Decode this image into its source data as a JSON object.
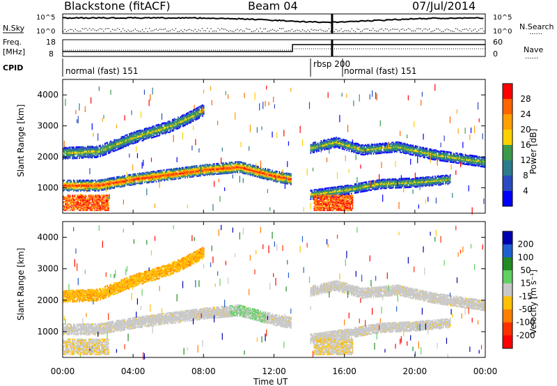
{
  "header": {
    "station": "Blackstone (fitACF)",
    "beam": "Beam 04",
    "date": "07/Jul/2014"
  },
  "left_labels": {
    "nsky": "N.Sky",
    "freq": "Freq.",
    "freq_unit": "[MHz]",
    "cpid": "CPID"
  },
  "right_labels": {
    "nsearch": "N.Search",
    "nave": "Nave",
    "legend_dots": "......"
  },
  "noise_axis": {
    "left_ticks": [
      "10^5",
      "10^0"
    ],
    "right_ticks": [
      "10^5",
      "10^0"
    ]
  },
  "freq_axis": {
    "left_ticks": [
      "18",
      "8"
    ],
    "right_ticks": [
      "60",
      "0"
    ]
  },
  "cpid_segments": [
    {
      "label": "normal (fast) 151",
      "start_hour": 0,
      "end_hour": 14.3
    },
    {
      "label": "rbsp 200",
      "start_hour": 14.3,
      "end_hour": 16.3
    },
    {
      "label": "normal (fast) 151",
      "start_hour": 16.3,
      "end_hour": 24
    }
  ],
  "time_axis": {
    "label": "Time UT",
    "ticks": [
      "00:00",
      "04:00",
      "08:00",
      "12:00",
      "16:00",
      "20:00",
      "00:00"
    ]
  },
  "range_axis": {
    "label": "Slant Range [km]",
    "ticks": [
      "1000",
      "2000",
      "3000",
      "4000"
    ]
  },
  "power_colorbar": {
    "label": "Power [dB]",
    "ticks": [
      "28",
      "24",
      "20",
      "16",
      "12",
      "8",
      "4"
    ],
    "colors": [
      "#ff0000",
      "#ff6400",
      "#ffa000",
      "#ffd000",
      "#3c9a4c",
      "#2c7c8c",
      "#2a4cc0",
      "#0000ff"
    ]
  },
  "velocity_colorbar": {
    "label": "Velocity [m s⁻¹]",
    "ticks": [
      "200",
      "100",
      "50",
      "15",
      "-15",
      "-50",
      "-100",
      "-200"
    ],
    "colors": [
      "#0000b0",
      "#2060d0",
      "#228b22",
      "#60d060",
      "#c8c8c8",
      "#ffc000",
      "#ff8000",
      "#ff3000",
      "#ff0000"
    ]
  },
  "chart_data": {
    "type": "heatmap",
    "panels": [
      "power",
      "velocity"
    ],
    "x": {
      "unit": "UT hours",
      "range": [
        0,
        24
      ]
    },
    "y": {
      "unit": "km",
      "range": [
        180,
        4500
      ]
    },
    "echo_bands": [
      {
        "name": "inner band",
        "points": [
          [
            0,
            1100
          ],
          [
            2,
            1100
          ],
          [
            4,
            1300
          ],
          [
            6,
            1450
          ],
          [
            8,
            1600
          ],
          [
            10,
            1700
          ],
          [
            11,
            1550
          ],
          [
            12,
            1400
          ],
          [
            13,
            1300
          ]
        ]
      },
      {
        "name": "upper band",
        "points": [
          [
            0,
            2150
          ],
          [
            2,
            2200
          ],
          [
            4,
            2650
          ],
          [
            6,
            3000
          ],
          [
            7,
            3250
          ],
          [
            8,
            3550
          ]
        ]
      },
      {
        "name": "evening band",
        "points": [
          [
            14,
            2300
          ],
          [
            15.5,
            2500
          ],
          [
            17,
            2250
          ],
          [
            19,
            2350
          ],
          [
            21,
            2100
          ],
          [
            24,
            1850
          ]
        ]
      },
      {
        "name": "lower evening band",
        "points": [
          [
            14,
            800
          ],
          [
            16,
            950
          ],
          [
            18,
            1150
          ],
          [
            20,
            1200
          ],
          [
            22,
            1300
          ]
        ]
      }
    ]
  }
}
